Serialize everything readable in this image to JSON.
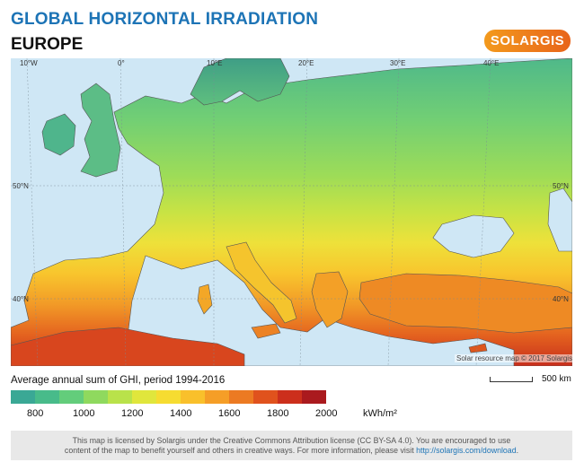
{
  "header": {
    "title": "GLOBAL HORIZONTAL IRRADIATION",
    "subtitle": "EUROPE",
    "logo": "SOLARGIS"
  },
  "map": {
    "lon_labels": [
      "10°W",
      "0°",
      "10°E",
      "20°E",
      "30°E",
      "40°E"
    ],
    "lat_labels": [
      "50°N",
      "40°N"
    ],
    "copyright": "Solar resource map © 2017 Solargis",
    "ocean_color": "#cfe7f5"
  },
  "scale": {
    "label": "500 km"
  },
  "legend": {
    "title": "Average annual sum of GHI, period 1994-2016",
    "ticks": [
      "800",
      "1000",
      "1200",
      "1400",
      "1600",
      "1800",
      "2000"
    ],
    "unit": "kWh/m²",
    "colors": [
      "#3aa895",
      "#48bb8a",
      "#63cd7b",
      "#8fd95e",
      "#b9e24a",
      "#e0e63c",
      "#f6dc31",
      "#f9c02b",
      "#f59e27",
      "#ec7a22",
      "#e0521d",
      "#cc2f1c",
      "#aa1a1e"
    ]
  },
  "footer": {
    "line1": "This map is licensed by Solargis under the Creative Commons Attribution license (CC BY-SA 4.0). You are encouraged to use",
    "line2_text": "content of the map to benefit yourself and others in creative ways. For more information, please visit",
    "link": "http://solargis.com/download",
    "line2_end": "."
  }
}
